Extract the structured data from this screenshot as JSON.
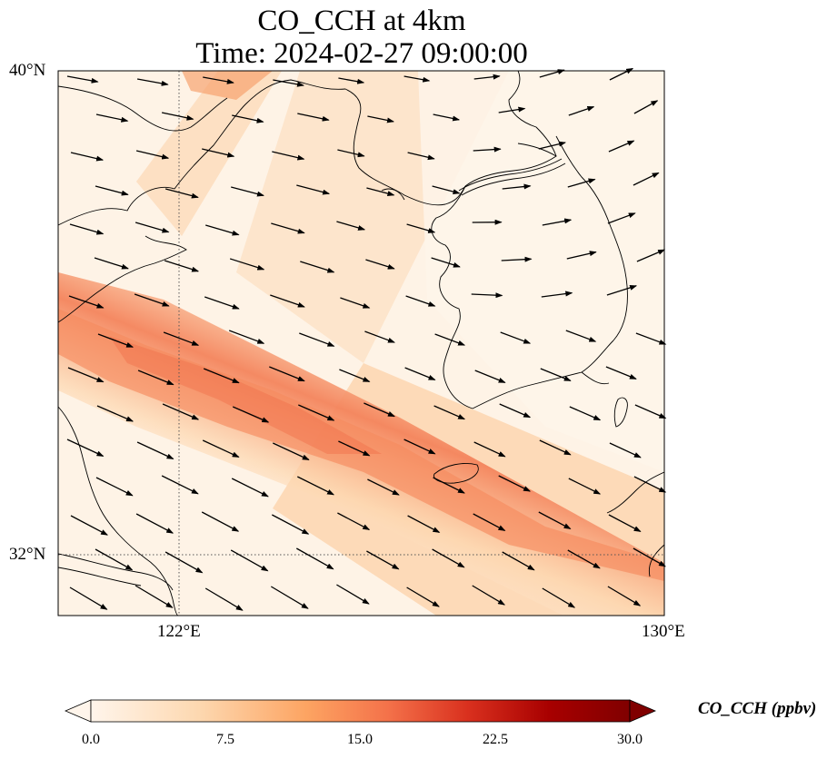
{
  "title": {
    "line1": "CO_CCH at 4km",
    "line2": "Time: 2024-02-27 09:00:00"
  },
  "map": {
    "lat_ticks": [
      "40°N",
      "32°N"
    ],
    "lon_ticks": [
      "122°E",
      "130°E"
    ],
    "extent": {
      "lon_min": 120,
      "lon_max": 130,
      "lat_min": 31,
      "lat_max": 40
    },
    "gridlines": {
      "lons": [
        122
      ],
      "lats": [
        32
      ],
      "style": "dotted"
    },
    "land_color": "#fef5e9",
    "plume_color": "#f4845c"
  },
  "colorbar": {
    "label": "CO_CCH (ppbv)",
    "ticks": [
      "0.0",
      "7.5",
      "15.0",
      "22.5",
      "30.0"
    ],
    "range": [
      0,
      30
    ],
    "extend": "both",
    "colors": [
      "#fff5eb",
      "#fdd0a2",
      "#fd8d3c",
      "#d94801",
      "#a50000",
      "#7f0000"
    ]
  }
}
